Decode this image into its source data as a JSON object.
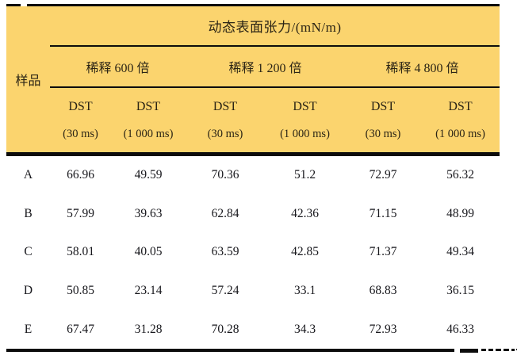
{
  "colors": {
    "header_bg": "#fbd46e",
    "rule": "#0c0c0c",
    "text": "#1c1b1d"
  },
  "table": {
    "title": "动态表面张力/(mN/m)",
    "sample_header": "样品",
    "groups": [
      {
        "label": "稀释 600 倍"
      },
      {
        "label": "稀释 1 200 倍"
      },
      {
        "label": "稀释 4 800 倍"
      }
    ],
    "columns": [
      {
        "name": "DST",
        "time": "(30 ms)"
      },
      {
        "name": "DST",
        "time": "(1 000 ms)"
      },
      {
        "name": "DST",
        "time": "(30 ms)"
      },
      {
        "name": "DST",
        "time": "(1 000 ms)"
      },
      {
        "name": "DST",
        "time": "(30 ms)"
      },
      {
        "name": "DST",
        "time": "(1 000 ms)"
      }
    ],
    "rows": [
      {
        "sample": "A",
        "values": [
          "66.96",
          "49.59",
          "70.36",
          "51.2",
          "72.97",
          "56.32"
        ]
      },
      {
        "sample": "B",
        "values": [
          "57.99",
          "39.63",
          "62.84",
          "42.36",
          "71.15",
          "48.99"
        ]
      },
      {
        "sample": "C",
        "values": [
          "58.01",
          "40.05",
          "63.59",
          "42.85",
          "71.37",
          "49.34"
        ]
      },
      {
        "sample": "D",
        "values": [
          "50.85",
          "23.14",
          "57.24",
          "33.1",
          "68.83",
          "36.15"
        ]
      },
      {
        "sample": "E",
        "values": [
          "67.47",
          "31.28",
          "70.28",
          "34.3",
          "72.93",
          "46.33"
        ]
      }
    ]
  }
}
